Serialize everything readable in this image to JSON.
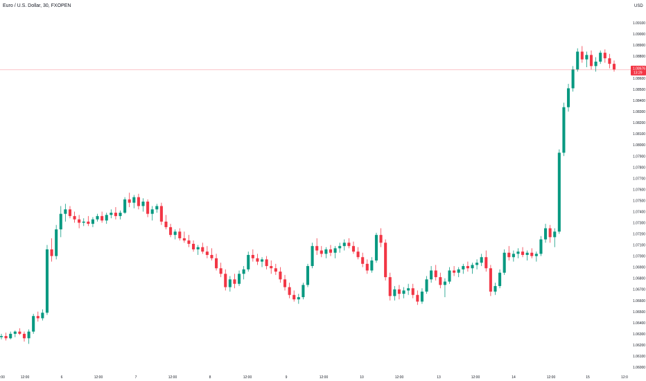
{
  "header": {
    "symbol_title": "Euro / U.S. Dollar, 30, FXOPEN",
    "currency": "USD"
  },
  "colors": {
    "up": "#089981",
    "down": "#f23645",
    "price_line": "#f23645"
  },
  "price_tag": {
    "price": "1.08676",
    "countdown": "13:29"
  },
  "chart_data": {
    "type": "candlestick",
    "title": "Euro / U.S. Dollar, 30, FXOPEN",
    "ylim": [
      1.06,
      1.0918
    ],
    "y_ticks": [
      "1.09100",
      "1.09000",
      "1.08900",
      "1.08800",
      "1.08700",
      "1.08600",
      "1.08500",
      "1.08400",
      "1.08300",
      "1.08200",
      "1.08100",
      "1.08000",
      "1.07900",
      "1.07800",
      "1.07700",
      "1.07600",
      "1.07500",
      "1.07400",
      "1.07300",
      "1.07200",
      "1.07100",
      "1.07000",
      "1.06900",
      "1.06800",
      "1.06700",
      "1.06600",
      "1.06500",
      "1.06400",
      "1.06300",
      "1.06200",
      "1.06100",
      "1.06000"
    ],
    "x_ticks": [
      "6:00",
      "12:00",
      "6",
      "12:00",
      "7",
      "12:00",
      "8",
      "12:00",
      "9",
      "12:00",
      "10",
      "12:00",
      "13",
      "12:00",
      "14",
      "12:00",
      "15",
      "12:0"
    ],
    "candles": [
      [
        1.0627,
        1.063,
        1.0625,
        1.0628
      ],
      [
        1.0628,
        1.0631,
        1.0624,
        1.0626
      ],
      [
        1.0626,
        1.0632,
        1.0625,
        1.063
      ],
      [
        1.063,
        1.0633,
        1.0627,
        1.0632
      ],
      [
        1.0632,
        1.0635,
        1.0629,
        1.063
      ],
      [
        1.063,
        1.0632,
        1.0623,
        1.0626
      ],
      [
        1.0626,
        1.0634,
        1.0621,
        1.0632
      ],
      [
        1.0632,
        1.0648,
        1.063,
        1.0646
      ],
      [
        1.0646,
        1.065,
        1.0641,
        1.0644
      ],
      [
        1.0644,
        1.0652,
        1.0642,
        1.0649
      ],
      [
        1.0649,
        1.071,
        1.0647,
        1.0706
      ],
      [
        1.0706,
        1.0716,
        1.0695,
        1.07
      ],
      [
        1.07,
        1.0728,
        1.0697,
        1.0724
      ],
      [
        1.0724,
        1.0745,
        1.0717,
        1.0738
      ],
      [
        1.0738,
        1.0747,
        1.0731,
        1.0742
      ],
      [
        1.0742,
        1.0745,
        1.0734,
        1.0736
      ],
      [
        1.0736,
        1.074,
        1.073,
        1.0733
      ],
      [
        1.0733,
        1.0737,
        1.0725,
        1.073
      ],
      [
        1.073,
        1.0734,
        1.0727,
        1.0731
      ],
      [
        1.0731,
        1.0736,
        1.0727,
        1.0729
      ],
      [
        1.0729,
        1.0735,
        1.0726,
        1.0733
      ],
      [
        1.0733,
        1.0738,
        1.0731,
        1.0736
      ],
      [
        1.0736,
        1.074,
        1.073,
        1.0732
      ],
      [
        1.0732,
        1.0739,
        1.0729,
        1.0737
      ],
      [
        1.0737,
        1.0742,
        1.0734,
        1.0739
      ],
      [
        1.0739,
        1.0744,
        1.0733,
        1.0736
      ],
      [
        1.0736,
        1.0741,
        1.0733,
        1.0739
      ],
      [
        1.0739,
        1.0753,
        1.0738,
        1.0751
      ],
      [
        1.0751,
        1.0757,
        1.0744,
        1.0748
      ],
      [
        1.0748,
        1.0755,
        1.0743,
        1.0753
      ],
      [
        1.0753,
        1.0756,
        1.0742,
        1.0745
      ],
      [
        1.0745,
        1.0752,
        1.074,
        1.0749
      ],
      [
        1.0749,
        1.0751,
        1.0735,
        1.0738
      ],
      [
        1.0738,
        1.0745,
        1.0732,
        1.0742
      ],
      [
        1.0742,
        1.0747,
        1.0739,
        1.0745
      ],
      [
        1.0745,
        1.0748,
        1.0728,
        1.0731
      ],
      [
        1.0731,
        1.0737,
        1.0724,
        1.0726
      ],
      [
        1.0726,
        1.0729,
        1.0717,
        1.0719
      ],
      [
        1.0719,
        1.0724,
        1.0715,
        1.0722
      ],
      [
        1.0722,
        1.0725,
        1.0714,
        1.0716
      ],
      [
        1.0716,
        1.0722,
        1.0712,
        1.0714
      ],
      [
        1.0714,
        1.0719,
        1.0708,
        1.0711
      ],
      [
        1.0711,
        1.0714,
        1.0704,
        1.0706
      ],
      [
        1.0706,
        1.071,
        1.0701,
        1.0708
      ],
      [
        1.0708,
        1.0712,
        1.0702,
        1.0704
      ],
      [
        1.0704,
        1.0709,
        1.0698,
        1.0701
      ],
      [
        1.0701,
        1.0707,
        1.0696,
        1.0698
      ],
      [
        1.0698,
        1.0702,
        1.0687,
        1.0689
      ],
      [
        1.0689,
        1.0694,
        1.0681,
        1.0684
      ],
      [
        1.0684,
        1.0688,
        1.0669,
        1.0672
      ],
      [
        1.0672,
        1.0682,
        1.0668,
        1.0679
      ],
      [
        1.0679,
        1.0684,
        1.0671,
        1.0675
      ],
      [
        1.0675,
        1.0687,
        1.0673,
        1.0684
      ],
      [
        1.0684,
        1.0691,
        1.0679,
        1.0688
      ],
      [
        1.0688,
        1.0704,
        1.0686,
        1.0701
      ],
      [
        1.0701,
        1.0706,
        1.0695,
        1.0698
      ],
      [
        1.0698,
        1.0702,
        1.0692,
        1.0695
      ],
      [
        1.0695,
        1.0699,
        1.069,
        1.0697
      ],
      [
        1.0697,
        1.07,
        1.0688,
        1.0691
      ],
      [
        1.0691,
        1.0696,
        1.0684,
        1.0689
      ],
      [
        1.0689,
        1.0693,
        1.0683,
        1.0686
      ],
      [
        1.0686,
        1.069,
        1.0676,
        1.0679
      ],
      [
        1.0679,
        1.0683,
        1.0669,
        1.0672
      ],
      [
        1.0672,
        1.0676,
        1.0662,
        1.0665
      ],
      [
        1.0665,
        1.0669,
        1.0659,
        1.0661
      ],
      [
        1.0661,
        1.0666,
        1.0657,
        1.0663
      ],
      [
        1.0663,
        1.0676,
        1.0661,
        1.0674
      ],
      [
        1.0674,
        1.0693,
        1.0672,
        1.0691
      ],
      [
        1.0691,
        1.0712,
        1.0689,
        1.0709
      ],
      [
        1.0709,
        1.0716,
        1.0701,
        1.0705
      ],
      [
        1.0705,
        1.0709,
        1.0699,
        1.0702
      ],
      [
        1.0702,
        1.0708,
        1.0698,
        1.0706
      ],
      [
        1.0706,
        1.071,
        1.07,
        1.0703
      ],
      [
        1.0703,
        1.0709,
        1.0698,
        1.0707
      ],
      [
        1.0707,
        1.0712,
        1.0703,
        1.0709
      ],
      [
        1.0709,
        1.0715,
        1.0705,
        1.0712
      ],
      [
        1.0712,
        1.0716,
        1.0707,
        1.0709
      ],
      [
        1.0709,
        1.0713,
        1.0702,
        1.0704
      ],
      [
        1.0704,
        1.0708,
        1.0697,
        1.0699
      ],
      [
        1.0699,
        1.0703,
        1.069,
        1.0693
      ],
      [
        1.0693,
        1.0697,
        1.0684,
        1.0687
      ],
      [
        1.0687,
        1.0699,
        1.0685,
        1.0696
      ],
      [
        1.0696,
        1.0721,
        1.0694,
        1.0719
      ],
      [
        1.0719,
        1.0725,
        1.0708,
        1.0712
      ],
      [
        1.0712,
        1.0715,
        1.0678,
        1.0681
      ],
      [
        1.0681,
        1.0685,
        1.066,
        1.0664
      ],
      [
        1.0664,
        1.0673,
        1.066,
        1.067
      ],
      [
        1.067,
        1.0674,
        1.0661,
        1.0666
      ],
      [
        1.0666,
        1.0672,
        1.0662,
        1.0669
      ],
      [
        1.0669,
        1.0675,
        1.0665,
        1.0671
      ],
      [
        1.0671,
        1.0675,
        1.0662,
        1.0665
      ],
      [
        1.0665,
        1.0669,
        1.0656,
        1.0659
      ],
      [
        1.0659,
        1.0671,
        1.0657,
        1.0668
      ],
      [
        1.0668,
        1.0682,
        1.0666,
        1.0679
      ],
      [
        1.0679,
        1.0691,
        1.0676,
        1.0687
      ],
      [
        1.0687,
        1.0692,
        1.0678,
        1.0681
      ],
      [
        1.0681,
        1.0685,
        1.0671,
        1.0674
      ],
      [
        1.0674,
        1.068,
        1.0663,
        1.0677
      ],
      [
        1.0677,
        1.069,
        1.0675,
        1.0687
      ],
      [
        1.0687,
        1.0691,
        1.0682,
        1.0685
      ],
      [
        1.0685,
        1.069,
        1.0681,
        1.0688
      ],
      [
        1.0688,
        1.0693,
        1.0684,
        1.0691
      ],
      [
        1.0691,
        1.0695,
        1.0686,
        1.0689
      ],
      [
        1.0689,
        1.0694,
        1.0684,
        1.0692
      ],
      [
        1.0692,
        1.0697,
        1.0688,
        1.0694
      ],
      [
        1.0694,
        1.0702,
        1.0691,
        1.0699
      ],
      [
        1.0699,
        1.0705,
        1.0686,
        1.0689
      ],
      [
        1.0689,
        1.0692,
        1.0664,
        1.0668
      ],
      [
        1.0668,
        1.0676,
        1.0665,
        1.0673
      ],
      [
        1.0673,
        1.0688,
        1.0671,
        1.0685
      ],
      [
        1.0685,
        1.0706,
        1.0683,
        1.0703
      ],
      [
        1.0703,
        1.0709,
        1.0696,
        1.0699
      ],
      [
        1.0699,
        1.0705,
        1.0695,
        1.0702
      ],
      [
        1.0702,
        1.0707,
        1.0698,
        1.0704
      ],
      [
        1.0704,
        1.0708,
        1.0699,
        1.0701
      ],
      [
        1.0701,
        1.0705,
        1.0696,
        1.0703
      ],
      [
        1.0703,
        1.0707,
        1.0698,
        1.07
      ],
      [
        1.07,
        1.0704,
        1.0695,
        1.0702
      ],
      [
        1.0702,
        1.0718,
        1.07,
        1.0715
      ],
      [
        1.0715,
        1.0729,
        1.0712,
        1.0725
      ],
      [
        1.0725,
        1.0728,
        1.0712,
        1.0717
      ],
      [
        1.0717,
        1.0725,
        1.0708,
        1.0722
      ],
      [
        1.0722,
        1.0796,
        1.072,
        1.0793
      ],
      [
        1.0793,
        1.0838,
        1.079,
        1.0834
      ],
      [
        1.0834,
        1.0855,
        1.083,
        1.0851
      ],
      [
        1.0851,
        1.0871,
        1.0848,
        1.0868
      ],
      [
        1.0868,
        1.0887,
        1.0866,
        1.0884
      ],
      [
        1.0884,
        1.0889,
        1.0874,
        1.0877
      ],
      [
        1.0877,
        1.0884,
        1.087,
        1.0881
      ],
      [
        1.0881,
        1.0885,
        1.0868,
        1.0871
      ],
      [
        1.0871,
        1.0879,
        1.0866,
        1.0875
      ],
      [
        1.0875,
        1.0885,
        1.0873,
        1.0883
      ],
      [
        1.0883,
        1.0886,
        1.0874,
        1.0878
      ],
      [
        1.0878,
        1.0882,
        1.0869,
        1.0873
      ],
      [
        1.0873,
        1.0876,
        1.0866,
        1.0868
      ]
    ]
  }
}
